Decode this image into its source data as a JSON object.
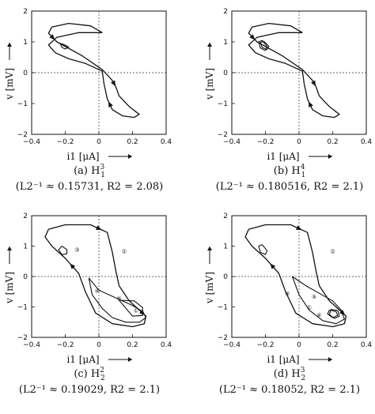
{
  "chart_data": [
    {
      "type": "line",
      "caption": "(a) H",
      "caption_sub": "1",
      "caption_sup": "3",
      "param_line": "(L2⁻¹ ≈ 0.15731, R2 = 2.08)",
      "xlabel": "i1 [μA]",
      "ylabel": "v [mV]",
      "xlim": [
        -0.4,
        0.4
      ],
      "ylim": [
        -2,
        2
      ],
      "xticks": [
        "−0.4",
        "−0.2",
        "0",
        "0.2",
        "0.4"
      ],
      "yticks": [
        "2",
        "1",
        "0",
        "−1",
        "−2"
      ],
      "series": [
        {
          "x": [
            0.02,
            -0.05,
            -0.18,
            -0.28,
            -0.3,
            -0.25,
            -0.1,
            0.02,
            0.08,
            0.1,
            0.12,
            0.18,
            0.24,
            0.21,
            0.14,
            0.08,
            0.05,
            0.03,
            0.02,
            -0.02,
            -0.08,
            -0.18,
            -0.26,
            -0.3,
            -0.25,
            -0.12,
            0.02
          ],
          "y": [
            1.3,
            1.52,
            1.6,
            1.48,
            1.28,
            1.0,
            0.55,
            0.1,
            -0.25,
            -0.45,
            -0.75,
            -1.1,
            -1.35,
            -1.45,
            -1.4,
            -1.2,
            -0.85,
            -0.35,
            0.05,
            0.15,
            0.3,
            0.45,
            0.65,
            0.9,
            1.15,
            1.3,
            1.3
          ]
        },
        {
          "x": [
            -0.21,
            -0.18,
            -0.2,
            -0.22,
            -0.23,
            -0.21
          ],
          "y": [
            0.92,
            0.83,
            0.77,
            0.82,
            0.95,
            0.92
          ]
        }
      ]
    },
    {
      "type": "line",
      "caption": "(b) H",
      "caption_sub": "1",
      "caption_sup": "4",
      "param_line": "(L2⁻¹ ≈ 0.180516, R2 = 2.1)",
      "xlabel": "i1 [μA]",
      "ylabel": "v [mV]",
      "xlim": [
        -0.4,
        0.4
      ],
      "ylim": [
        -2,
        2
      ],
      "xticks": [
        "−0.4",
        "−0.2",
        "0",
        "0.2",
        "0.4"
      ],
      "yticks": [
        "2",
        "1",
        "0",
        "−1",
        "−2"
      ],
      "series": [
        {
          "x": [
            0.02,
            -0.05,
            -0.18,
            -0.28,
            -0.3,
            -0.25,
            -0.1,
            0.02,
            0.08,
            0.1,
            0.12,
            0.18,
            0.24,
            0.21,
            0.14,
            0.08,
            0.05,
            0.03,
            0.02,
            -0.02,
            -0.08,
            -0.18,
            -0.26,
            -0.3,
            -0.25,
            -0.12,
            0.02
          ],
          "y": [
            1.3,
            1.52,
            1.6,
            1.48,
            1.28,
            1.0,
            0.55,
            0.1,
            -0.25,
            -0.45,
            -0.75,
            -1.1,
            -1.35,
            -1.45,
            -1.4,
            -1.2,
            -0.85,
            -0.35,
            0.05,
            0.15,
            0.3,
            0.45,
            0.65,
            0.9,
            1.15,
            1.3,
            1.3
          ]
        },
        {
          "x": [
            -0.22,
            -0.19,
            -0.2,
            -0.23,
            -0.24,
            -0.22
          ],
          "y": [
            1.05,
            0.85,
            0.72,
            0.8,
            1.0,
            1.05
          ]
        },
        {
          "x": [
            -0.21,
            -0.18,
            -0.19,
            -0.22,
            -0.23,
            -0.21
          ],
          "y": [
            1.02,
            0.86,
            0.75,
            0.82,
            0.98,
            1.02
          ]
        }
      ]
    },
    {
      "type": "line",
      "caption": "(c) H",
      "caption_sub": "2",
      "caption_sup": "2",
      "param_line": "(L2⁻¹ ≈ 0.19029, R2 = 2.1)",
      "xlabel": "i1 [μA]",
      "ylabel": "v [mV]",
      "xlim": [
        -0.4,
        0.4
      ],
      "ylim": [
        -2,
        2
      ],
      "xticks": [
        "−0.4",
        "−0.2",
        "0",
        "0.2",
        "0.4"
      ],
      "yticks": [
        "2",
        "1",
        "0",
        "−1",
        "−2"
      ],
      "series": [
        {
          "x": [
            -0.3,
            -0.2,
            -0.05,
            0.05,
            0.08,
            0.1,
            0.12,
            0.18,
            0.24,
            0.28,
            0.27,
            0.2,
            0.08,
            -0.02,
            -0.08,
            -0.12,
            -0.2,
            -0.28,
            -0.32,
            -0.3
          ],
          "y": [
            1.55,
            1.7,
            1.7,
            1.45,
            0.8,
            0.2,
            -0.3,
            -0.8,
            -1.1,
            -1.3,
            -1.55,
            -1.65,
            -1.55,
            -1.2,
            -0.5,
            0.1,
            0.6,
            1.0,
            1.3,
            1.55
          ]
        },
        {
          "x": [
            -0.06,
            0.0,
            0.06,
            0.12,
            0.2,
            0.26,
            0.28,
            0.24,
            0.16,
            0.08,
            0.02,
            -0.04,
            -0.06
          ],
          "y": [
            -0.05,
            -0.45,
            -0.6,
            -0.75,
            -0.95,
            -1.15,
            -1.35,
            -1.5,
            -1.5,
            -1.35,
            -1.05,
            -0.6,
            -0.05
          ]
        },
        {
          "x": [
            -0.22,
            -0.19,
            -0.19,
            -0.22,
            -0.24,
            -0.22
          ],
          "y": [
            1.0,
            0.88,
            0.75,
            0.72,
            0.88,
            1.0
          ]
        },
        {
          "x": [
            0.12,
            0.21,
            0.26,
            0.26,
            0.2,
            0.12
          ],
          "y": [
            -0.78,
            -0.8,
            -1.02,
            -1.28,
            -1.3,
            -0.78
          ]
        }
      ],
      "annotations": [
        "③",
        "②",
        "④",
        "⑤",
        "①"
      ]
    },
    {
      "type": "line",
      "caption": "(d) H",
      "caption_sub": "2",
      "caption_sup": "3",
      "param_line": "(L2⁻¹ ≈ 0.18052, R2 = 2.1)",
      "xlabel": "i1 [μA]",
      "ylabel": "v [mV]",
      "xlim": [
        -0.4,
        0.4
      ],
      "ylim": [
        -2,
        2
      ],
      "xticks": [
        "−0.4",
        "−0.2",
        "0",
        "0.2",
        "0.4"
      ],
      "yticks": [
        "2",
        "1",
        "0",
        "−1",
        "−2"
      ],
      "series": [
        {
          "x": [
            -0.3,
            -0.2,
            -0.05,
            0.05,
            0.08,
            0.1,
            0.12,
            0.18,
            0.24,
            0.28,
            0.27,
            0.2,
            0.08,
            -0.02,
            -0.08,
            -0.12,
            -0.2,
            -0.28,
            -0.32,
            -0.3
          ],
          "y": [
            1.55,
            1.7,
            1.7,
            1.45,
            0.8,
            0.2,
            -0.3,
            -0.8,
            -1.1,
            -1.3,
            -1.55,
            -1.65,
            -1.55,
            -1.2,
            -0.5,
            0.1,
            0.6,
            1.0,
            1.3,
            1.55
          ]
        },
        {
          "x": [
            -0.04,
            0.04,
            0.12,
            0.2,
            0.25,
            0.27,
            0.22,
            0.14,
            0.06,
            0.0,
            -0.04
          ],
          "y": [
            0.0,
            -0.3,
            -0.55,
            -0.8,
            -1.1,
            -1.4,
            -1.55,
            -1.45,
            -1.1,
            -0.6,
            0.0
          ]
        },
        {
          "x": [
            -0.22,
            -0.19,
            -0.2,
            -0.23,
            -0.24,
            -0.22
          ],
          "y": [
            1.05,
            0.85,
            0.72,
            0.8,
            1.0,
            1.05
          ]
        },
        {
          "x": [
            0.19,
            0.23,
            0.24,
            0.21,
            0.18,
            0.19
          ],
          "y": [
            -1.08,
            -1.12,
            -1.3,
            -1.38,
            -1.25,
            -1.08
          ]
        },
        {
          "x": [
            0.18,
            0.22,
            0.23,
            0.2,
            0.17,
            0.18
          ],
          "y": [
            -1.1,
            -1.15,
            -1.28,
            -1.35,
            -1.23,
            -1.1
          ]
        }
      ],
      "annotations": [
        "②",
        "⑤",
        "③",
        "①",
        "④"
      ]
    }
  ]
}
